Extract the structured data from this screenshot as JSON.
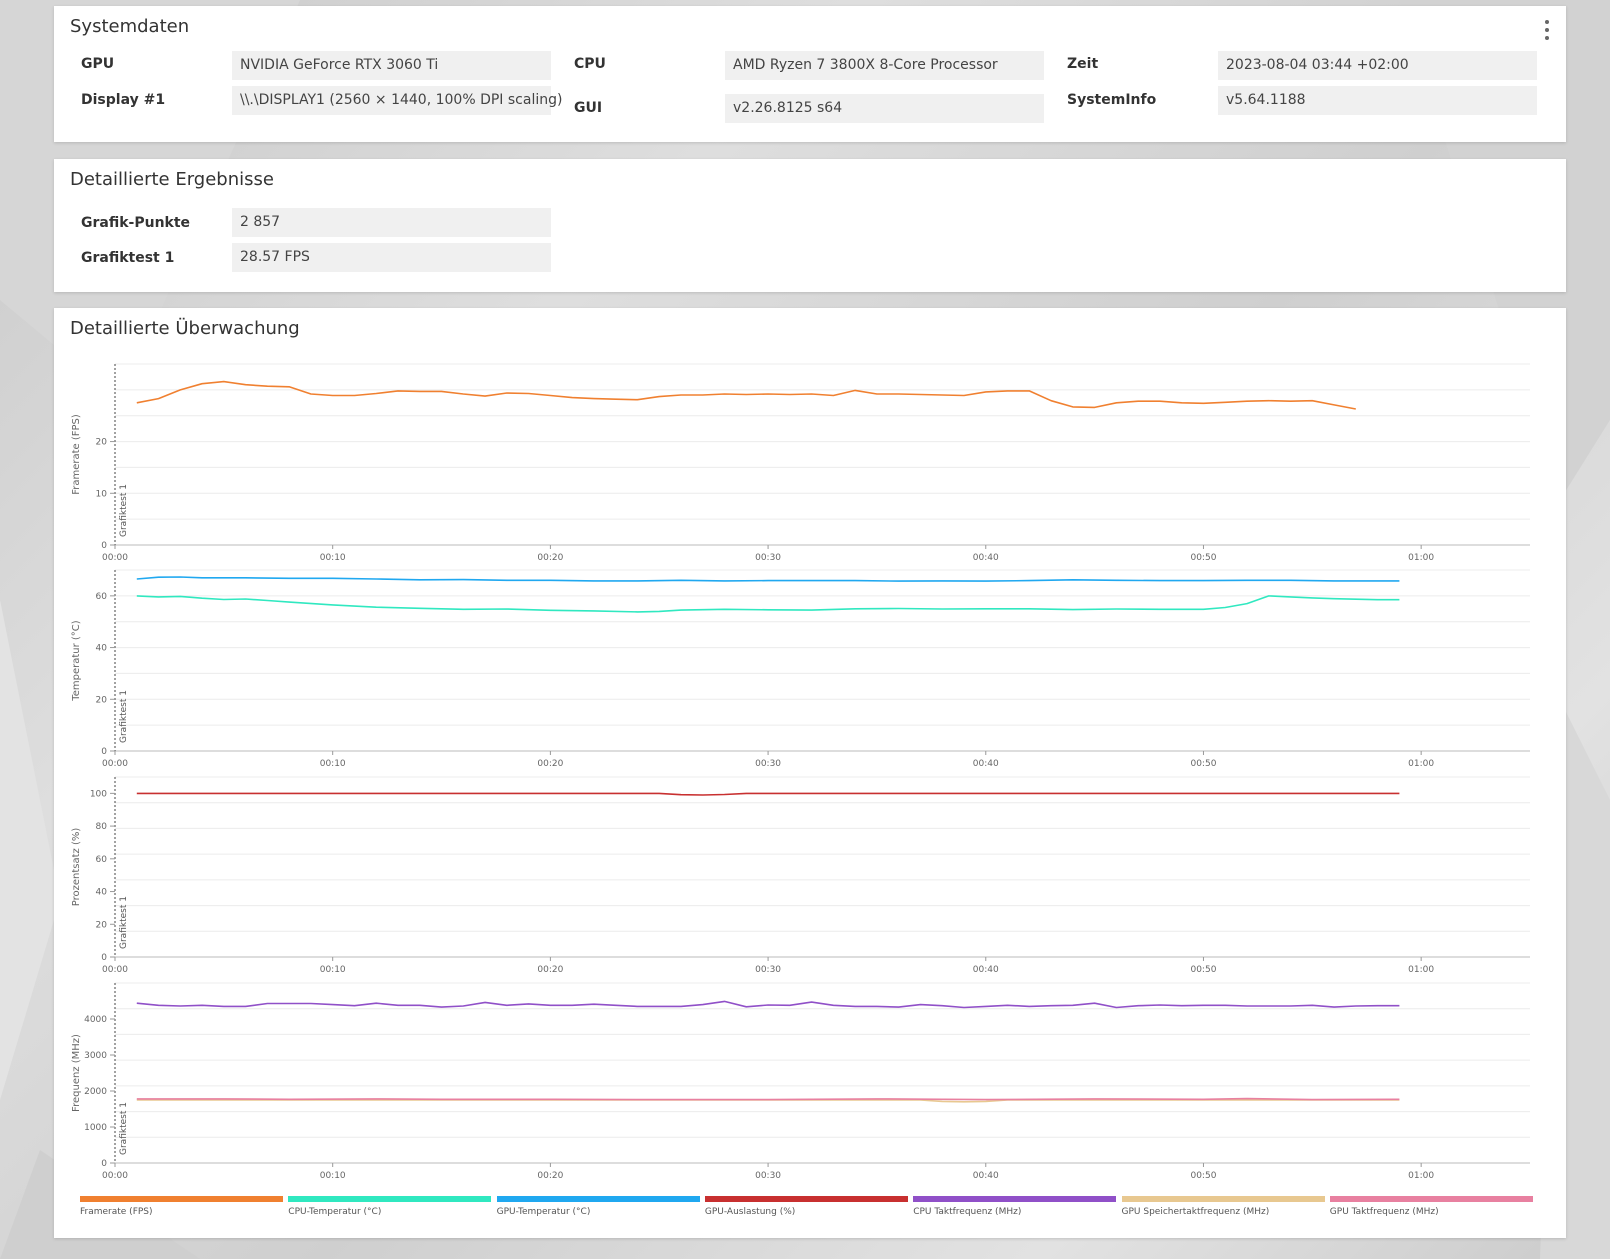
{
  "system": {
    "title": "Systemdaten",
    "rows": [
      {
        "label": "GPU",
        "value": "NVIDIA GeForce RTX 3060 Ti"
      },
      {
        "label": "Display #1",
        "value": "\\\\.\\DISPLAY1 (2560 × 1440, 100% DPI scaling)"
      },
      {
        "label": "CPU",
        "value": "AMD Ryzen 7 3800X 8-Core Processor"
      },
      {
        "label": "GUI",
        "value": "v2.26.8125 s64"
      },
      {
        "label": "Zeit",
        "value": "2023-08-04 03:44 +02:00"
      },
      {
        "label": "SystemInfo",
        "value": "v5.64.1188"
      }
    ]
  },
  "results": {
    "title": "Detaillierte Ergebnisse",
    "rows": [
      {
        "label": "Grafik-Punkte",
        "value": "2 857"
      },
      {
        "label": "Grafiktest 1",
        "value": "28.57 FPS"
      }
    ]
  },
  "monitoring": {
    "title": "Detaillierte Überwachung",
    "marker_label": "Grafiktest 1",
    "legend": [
      {
        "label": "Framerate (FPS)",
        "color": "#f08030"
      },
      {
        "label": "CPU-Temperatur (°C)",
        "color": "#30e8c0"
      },
      {
        "label": "GPU-Temperatur (°C)",
        "color": "#20a8f0"
      },
      {
        "label": "GPU-Auslastung (%)",
        "color": "#c83030"
      },
      {
        "label": "CPU Taktfrequenz (MHz)",
        "color": "#9050c8"
      },
      {
        "label": "GPU Speichertaktfrequenz (MHz)",
        "color": "#e8c890"
      },
      {
        "label": "GPU Taktfrequenz (MHz)",
        "color": "#e880a0"
      }
    ]
  },
  "chart_data": [
    {
      "type": "line",
      "ylabel": "Framerate (FPS)",
      "ylim": [
        0,
        35
      ],
      "yticks": [
        0,
        10,
        20
      ],
      "xlim": [
        0,
        65
      ],
      "xticks": [
        "00:00",
        "00:10",
        "00:20",
        "00:30",
        "00:40",
        "00:50",
        "01:00"
      ],
      "series": [
        {
          "name": "Framerate (FPS)",
          "color": "#f08030",
          "x": [
            1,
            2,
            3,
            4,
            5,
            6,
            7,
            8,
            9,
            10,
            11,
            12,
            13,
            14,
            15,
            16,
            17,
            18,
            19,
            20,
            21,
            22,
            23,
            24,
            25,
            26,
            27,
            28,
            29,
            30,
            31,
            32,
            33,
            34,
            35,
            36,
            37,
            38,
            39,
            40,
            41,
            42,
            43,
            44,
            45,
            46,
            47,
            48,
            49,
            50,
            51,
            52,
            53,
            54,
            55,
            56,
            57
          ],
          "y": [
            27.5,
            28.3,
            30.0,
            31.2,
            31.6,
            31.0,
            30.7,
            30.6,
            29.2,
            28.9,
            28.9,
            29.3,
            29.8,
            29.7,
            29.7,
            29.2,
            28.8,
            29.4,
            29.3,
            28.9,
            28.5,
            28.3,
            28.2,
            28.1,
            28.7,
            29.0,
            29.0,
            29.2,
            29.1,
            29.2,
            29.1,
            29.2,
            28.9,
            29.9,
            29.2,
            29.2,
            29.1,
            29.0,
            28.9,
            29.6,
            29.8,
            29.8,
            27.9,
            26.7,
            26.6,
            27.5,
            27.8,
            27.8,
            27.5,
            27.4,
            27.6,
            27.8,
            27.9,
            27.8,
            27.9,
            27.1,
            26.3
          ]
        }
      ]
    },
    {
      "type": "line",
      "ylabel": "Temperatur (°C)",
      "ylim": [
        0,
        70
      ],
      "yticks": [
        0,
        20,
        40,
        60
      ],
      "xlim": [
        0,
        65
      ],
      "xticks": [
        "00:00",
        "00:10",
        "00:20",
        "00:30",
        "00:40",
        "00:50",
        "01:00"
      ],
      "series": [
        {
          "name": "GPU-Temperatur (°C)",
          "color": "#20a8f0",
          "x": [
            1,
            2,
            3,
            4,
            6,
            8,
            10,
            12,
            14,
            16,
            18,
            20,
            22,
            24,
            26,
            28,
            30,
            32,
            34,
            36,
            38,
            40,
            42,
            44,
            46,
            48,
            50,
            52,
            54,
            56,
            58,
            59
          ],
          "y": [
            66.5,
            67.2,
            67.3,
            67.0,
            67.0,
            66.8,
            66.8,
            66.5,
            66.2,
            66.3,
            66.0,
            66.0,
            65.8,
            65.8,
            66.0,
            65.8,
            65.9,
            65.9,
            65.9,
            65.7,
            65.8,
            65.7,
            65.9,
            66.2,
            66.0,
            65.9,
            65.9,
            66.0,
            66.0,
            65.8,
            65.8,
            65.8
          ]
        },
        {
          "name": "CPU-Temperatur (°C)",
          "color": "#30e8c0",
          "x": [
            1,
            2,
            3,
            4,
            5,
            6,
            7,
            8,
            10,
            12,
            14,
            16,
            18,
            20,
            22,
            24,
            25,
            26,
            28,
            30,
            32,
            34,
            36,
            38,
            40,
            42,
            44,
            46,
            48,
            50,
            51,
            52,
            53,
            54,
            55,
            56,
            58,
            59
          ],
          "y": [
            60.0,
            59.6,
            59.8,
            59.1,
            58.6,
            58.8,
            58.2,
            57.6,
            56.5,
            55.6,
            55.2,
            54.8,
            54.9,
            54.4,
            54.2,
            53.8,
            54.0,
            54.5,
            54.8,
            54.6,
            54.5,
            55.0,
            55.1,
            54.9,
            55.0,
            55.0,
            54.7,
            54.9,
            54.8,
            54.8,
            55.5,
            57.0,
            60.0,
            59.6,
            59.2,
            58.9,
            58.5,
            58.5
          ]
        }
      ]
    },
    {
      "type": "line",
      "ylabel": "Prozentsatz (%)",
      "ylim": [
        0,
        110
      ],
      "yticks": [
        0,
        20,
        40,
        60,
        80,
        100
      ],
      "xlim": [
        0,
        65
      ],
      "xticks": [
        "00:00",
        "00:10",
        "00:20",
        "00:30",
        "00:40",
        "00:50",
        "01:00"
      ],
      "series": [
        {
          "name": "GPU-Auslastung (%)",
          "color": "#c83030",
          "x": [
            1,
            10,
            20,
            25,
            26,
            27,
            28,
            29,
            30,
            40,
            50,
            59
          ],
          "y": [
            100,
            100,
            100,
            100,
            99.2,
            99.0,
            99.3,
            100,
            100,
            100,
            100,
            100
          ]
        }
      ]
    },
    {
      "type": "line",
      "ylabel": "Frequenz (MHz)",
      "ylim": [
        0,
        5000
      ],
      "yticks": [
        0,
        1000,
        2000,
        3000,
        4000
      ],
      "xlim": [
        0,
        65
      ],
      "xticks": [
        "00:00",
        "00:10",
        "00:20",
        "00:30",
        "00:40",
        "00:50",
        "01:00"
      ],
      "series": [
        {
          "name": "CPU Taktfrequenz (MHz)",
          "color": "#9050c8",
          "x": [
            1,
            2,
            3,
            4,
            5,
            6,
            7,
            8,
            9,
            10,
            11,
            12,
            13,
            14,
            15,
            16,
            17,
            18,
            19,
            20,
            21,
            22,
            23,
            24,
            25,
            26,
            27,
            28,
            29,
            30,
            31,
            32,
            33,
            34,
            35,
            36,
            37,
            38,
            39,
            40,
            41,
            42,
            43,
            44,
            45,
            46,
            47,
            48,
            49,
            50,
            51,
            52,
            53,
            54,
            55,
            56,
            57,
            58,
            59
          ],
          "y": [
            4440,
            4380,
            4360,
            4380,
            4350,
            4350,
            4430,
            4430,
            4430,
            4400,
            4370,
            4440,
            4380,
            4380,
            4330,
            4360,
            4460,
            4380,
            4420,
            4380,
            4380,
            4410,
            4380,
            4350,
            4350,
            4350,
            4400,
            4490,
            4340,
            4390,
            4380,
            4470,
            4380,
            4350,
            4350,
            4330,
            4400,
            4370,
            4320,
            4350,
            4380,
            4350,
            4370,
            4380,
            4440,
            4320,
            4370,
            4390,
            4370,
            4380,
            4380,
            4360,
            4360,
            4360,
            4380,
            4330,
            4360,
            4370,
            4370
          ]
        },
        {
          "name": "GPU Speichertaktfrequenz (MHz)",
          "color": "#e8c890",
          "x": [
            1,
            10,
            20,
            30,
            37,
            38,
            39,
            40,
            41,
            50,
            59
          ],
          "y": [
            1750,
            1750,
            1750,
            1750,
            1750,
            1710,
            1700,
            1710,
            1750,
            1750,
            1750
          ]
        },
        {
          "name": "GPU Taktfrequenz (MHz)",
          "color": "#e880a0",
          "x": [
            1,
            5,
            8,
            12,
            15,
            20,
            24,
            28,
            30,
            35,
            38,
            40,
            45,
            50,
            52,
            55,
            59
          ],
          "y": [
            1780,
            1780,
            1770,
            1780,
            1770,
            1770,
            1760,
            1760,
            1760,
            1780,
            1770,
            1760,
            1780,
            1770,
            1790,
            1760,
            1770
          ]
        }
      ]
    }
  ]
}
